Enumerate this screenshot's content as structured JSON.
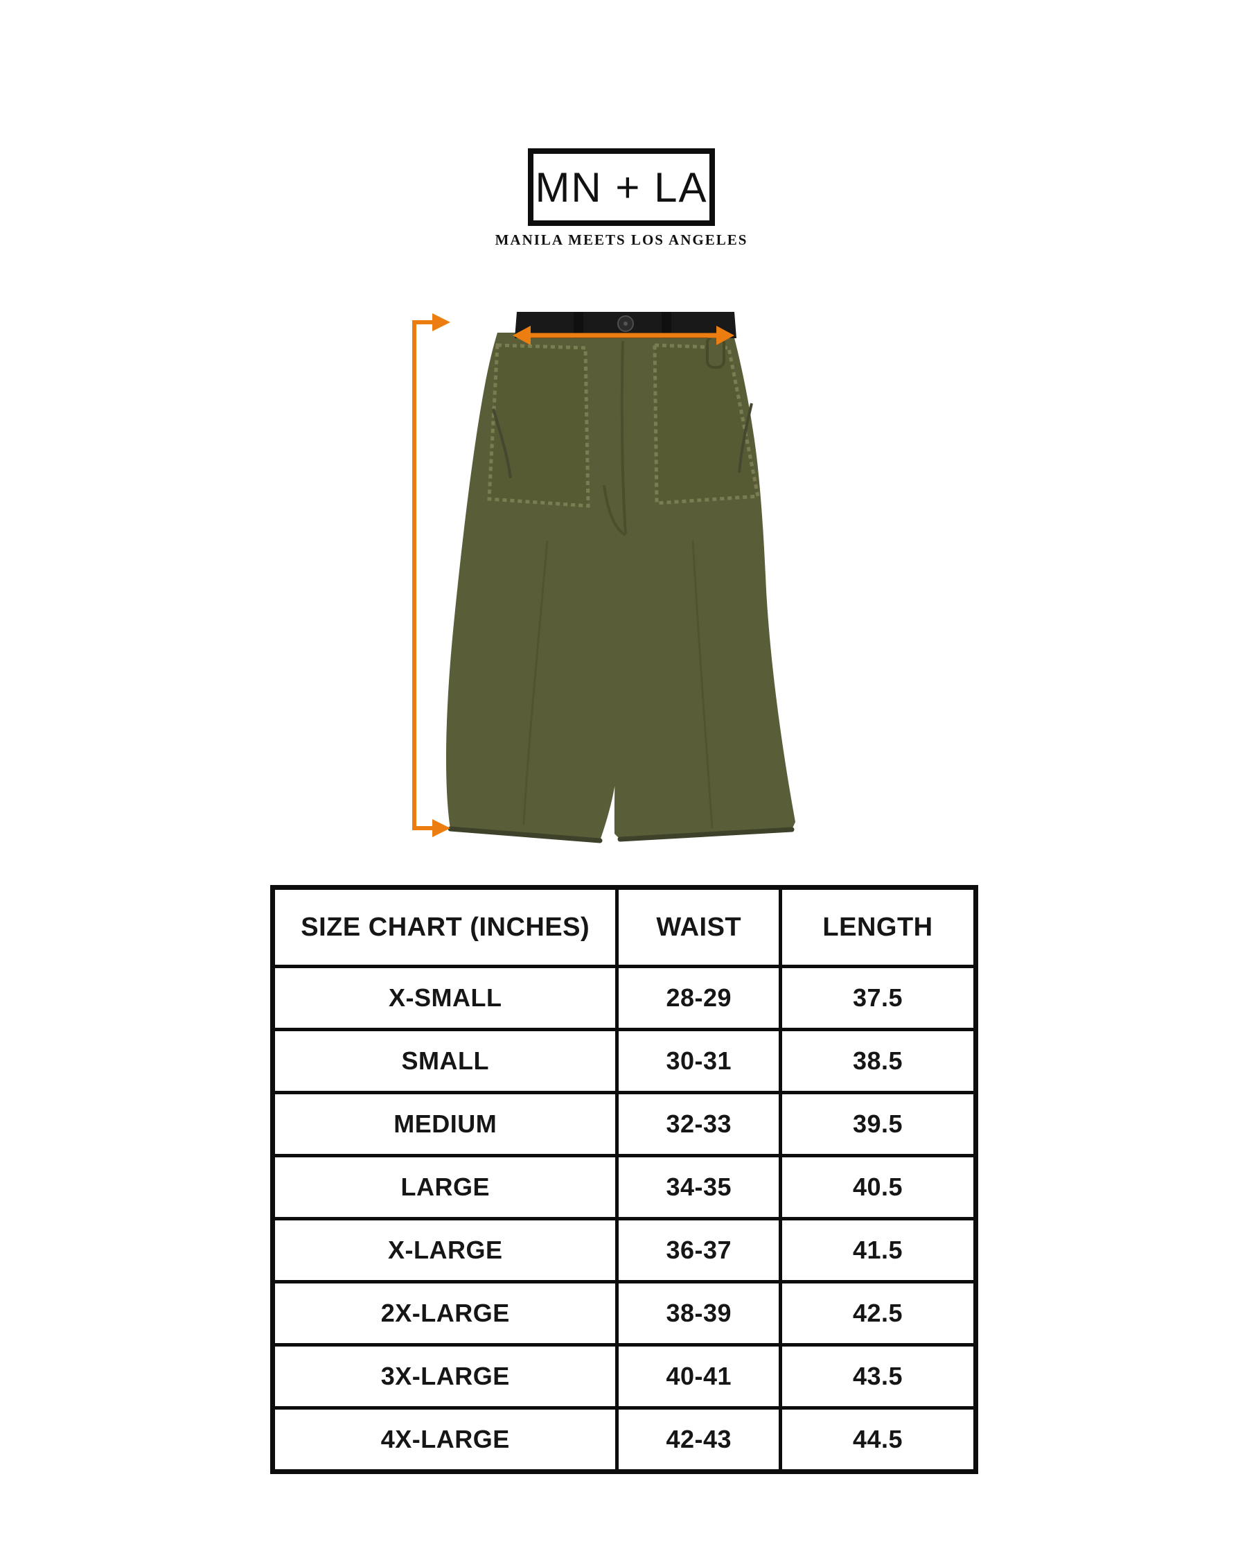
{
  "brand": {
    "logo_text": "MN + LA",
    "tagline": "MANILA MEETS LOS ANGELES"
  },
  "figure": {
    "subject": "olive-fatigue-pants-front-view",
    "measurement_arrows": [
      "length-vertical-left",
      "waist-horizontal-across-waistband"
    ],
    "colors": {
      "arrow_orange": "#EC7D10",
      "pants_olive": "#5A5E38",
      "pants_olive_dark": "#4A4E2C",
      "pocket_fray": "#7A7D52",
      "waistband_black": "#191919"
    }
  },
  "table": {
    "headers": [
      "SIZE CHART (INCHES)",
      "WAIST",
      "LENGTH"
    ],
    "rows": [
      {
        "size": "X-SMALL",
        "waist": "28-29",
        "length": "37.5"
      },
      {
        "size": "SMALL",
        "waist": "30-31",
        "length": "38.5"
      },
      {
        "size": "MEDIUM",
        "waist": "32-33",
        "length": "39.5"
      },
      {
        "size": "LARGE",
        "waist": "34-35",
        "length": "40.5"
      },
      {
        "size": "X-LARGE",
        "waist": "36-37",
        "length": "41.5"
      },
      {
        "size": "2X-LARGE",
        "waist": "38-39",
        "length": "42.5"
      },
      {
        "size": "3X-LARGE",
        "waist": "40-41",
        "length": "43.5"
      },
      {
        "size": "4X-LARGE",
        "waist": "42-43",
        "length": "44.5"
      }
    ]
  }
}
